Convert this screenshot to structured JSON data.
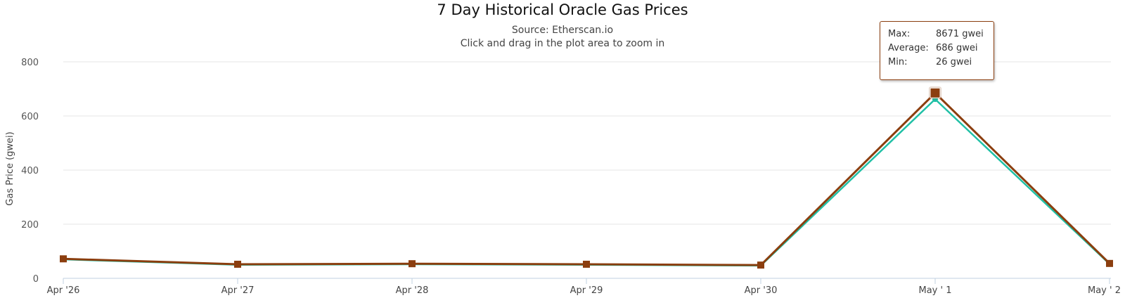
{
  "chart_data": {
    "type": "line",
    "title": "7 Day Historical Oracle Gas Prices",
    "subtitle": "Source: Etherscan.io",
    "hint": "Click and drag in the plot area to zoom in",
    "ylabel": "Gas Price (gwei)",
    "xlabel": "",
    "categories": [
      "Apr '26",
      "Apr '27",
      "Apr '28",
      "Apr '29",
      "Apr '30",
      "May ' 1",
      "May ' 2"
    ],
    "yticks": [
      0,
      200,
      400,
      600,
      800
    ],
    "ylim": [
      0,
      800
    ],
    "grid": true,
    "series": [
      {
        "values": [
          72,
          52,
          54,
          52,
          49,
          685,
          55
        ],
        "color": "#8b3e0f",
        "marker": "square"
      },
      {
        "values": [
          70,
          50,
          52,
          50,
          47,
          662,
          53
        ],
        "color": "#20c0a6",
        "marker": "circle"
      }
    ],
    "tooltip": {
      "rows": [
        {
          "key": "Max:",
          "value": "8671 gwei"
        },
        {
          "key": "Average:",
          "value": "686 gwei"
        },
        {
          "key": "Min:",
          "value": "26 gwei"
        }
      ],
      "highlight_index": 5
    }
  }
}
